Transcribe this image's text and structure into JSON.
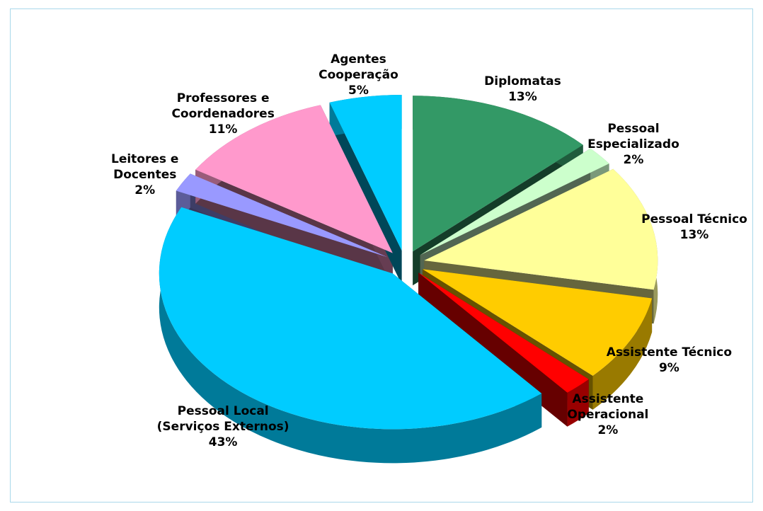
{
  "chart_data": {
    "type": "pie",
    "categories": [
      "Diplomatas",
      "Pessoal Especializado",
      "Pessoal Técnico",
      "Assistente Técnico",
      "Assistente Operacional",
      "Pessoal Local (Serviços Externos)",
      "Leitores e Docentes",
      "Professores e Coordenadores",
      "Agentes Cooperação"
    ],
    "values": [
      13,
      2,
      13,
      9,
      2,
      43,
      2,
      11,
      5
    ],
    "value_labels": [
      "13%",
      "2%",
      "13%",
      "9%",
      "2%",
      "43%",
      "2%",
      "11%",
      "5%"
    ],
    "colors": [
      "#339966",
      "#ccffcc",
      "#ffff99",
      "#ffcc00",
      "#ff0000",
      "#00ccff",
      "#9999ff",
      "#ff99cc",
      "#00ccff"
    ]
  }
}
